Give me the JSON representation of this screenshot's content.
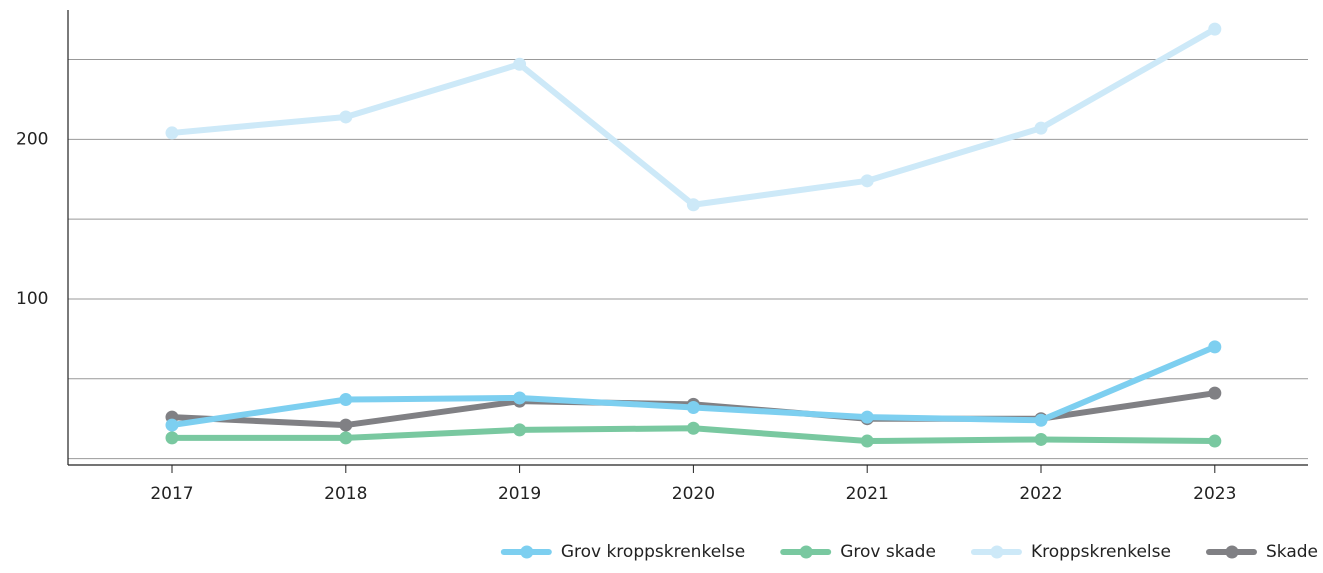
{
  "chart_data": {
    "type": "line",
    "categories": [
      "2017",
      "2018",
      "2019",
      "2020",
      "2021",
      "2022",
      "2023"
    ],
    "series": [
      {
        "name": "Kroppskrenkelse",
        "color": "#cde9f8",
        "values": [
          204,
          214,
          247,
          159,
          174,
          207,
          269
        ]
      },
      {
        "name": "Skade",
        "color": "#808084",
        "values": [
          26,
          21,
          36,
          34,
          25,
          25,
          41
        ]
      },
      {
        "name": "Grov skade",
        "color": "#79c8a0",
        "values": [
          13,
          13,
          18,
          19,
          11,
          12,
          11
        ]
      },
      {
        "name": "Grov kroppskrenkelse",
        "color": "#7dcff0",
        "values": [
          21,
          37,
          38,
          32,
          26,
          24,
          70
        ]
      }
    ],
    "legend_order": [
      3,
      2,
      0,
      1
    ],
    "legend": "bottom-right",
    "ylim": [
      -4,
      281
    ],
    "yticks": [
      100,
      200
    ],
    "ygrid": [
      0,
      50,
      100,
      150,
      200,
      250
    ],
    "grid": true
  }
}
